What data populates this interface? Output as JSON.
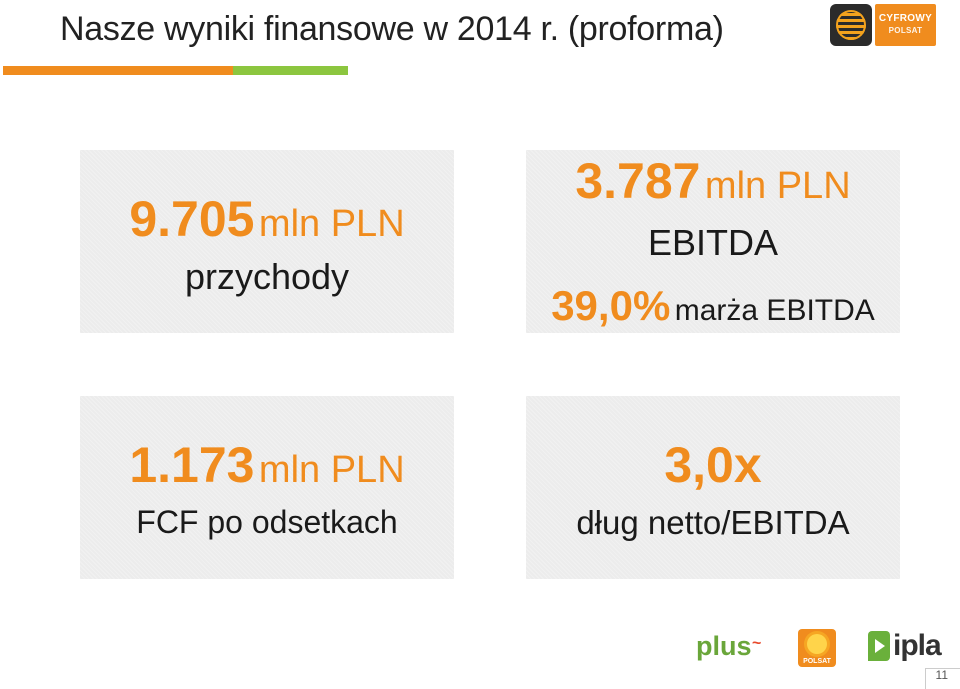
{
  "slide": {
    "title": "Nasze wyniki finansowe w 2014 r. (proforma)",
    "page_number": "11"
  },
  "logos": {
    "top_right": {
      "line1": "CYFROWY",
      "line2": "POLSAT"
    },
    "bottom": {
      "plus": "plus",
      "polsat": "POLSAT",
      "ipla": "ipla"
    }
  },
  "cards": {
    "revenue": {
      "value": "9.705",
      "unit": "mln PLN",
      "label": "przychody"
    },
    "ebitda": {
      "value": "3.787",
      "unit": "mln PLN",
      "label": "EBITDA",
      "margin_value": "39,0%",
      "margin_label": "marża EBITDA"
    },
    "fcf": {
      "value": "1.173",
      "unit": "mln PLN",
      "label": "FCF po odsetkach"
    },
    "leverage": {
      "value": "3,0x",
      "label": "dług netto/EBITDA"
    }
  },
  "colors": {
    "accent_orange": "#f08c1e",
    "accent_green": "#8cc63f",
    "card_bg": "#ececec"
  }
}
